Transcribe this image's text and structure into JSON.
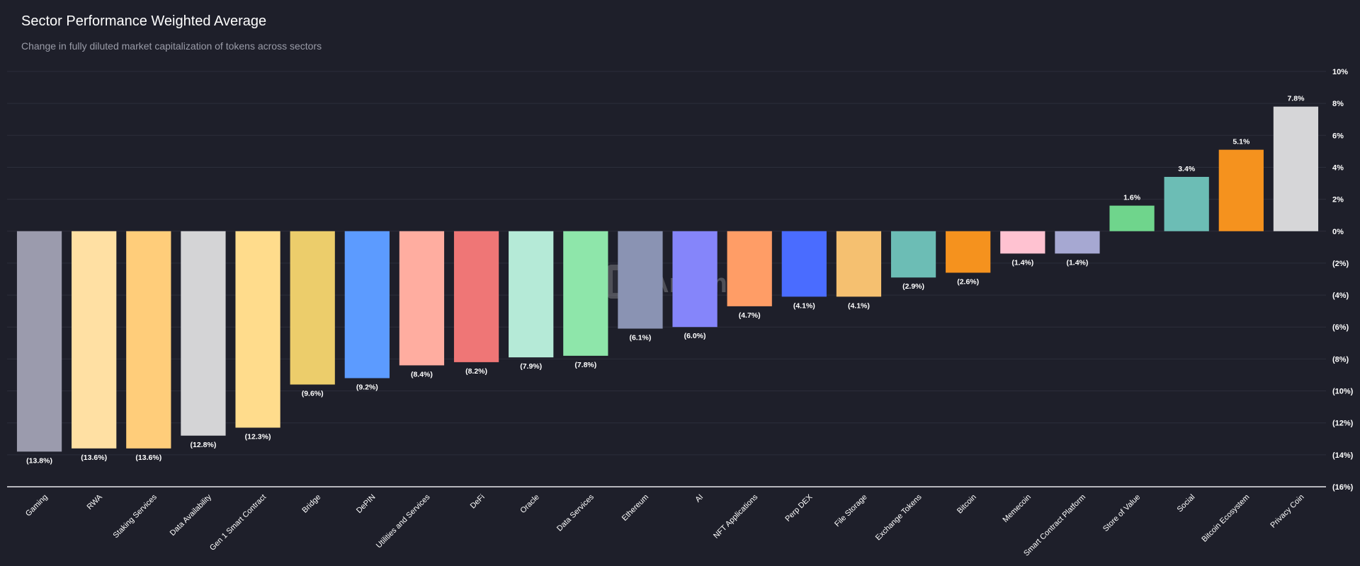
{
  "header": {
    "title": "Sector Performance Weighted Average",
    "subtitle": "Change in fully diluted market capitalization of tokens across sectors"
  },
  "watermark": {
    "text": "Artemis"
  },
  "chart_data": {
    "type": "bar",
    "title": "Sector Performance Weighted Average",
    "subtitle": "Change in fully diluted market capitalization of tokens across sectors",
    "xlabel": "",
    "ylabel": "",
    "ylim": [
      -16,
      10
    ],
    "yaxis_position": "right",
    "grid": true,
    "yticks": [
      10,
      8,
      6,
      4,
      2,
      0,
      -2,
      -4,
      -6,
      -8,
      -10,
      -12,
      -14,
      -16
    ],
    "ytick_labels": [
      "10%",
      "8%",
      "6%",
      "4%",
      "2%",
      "0%",
      "(2%)",
      "(4%)",
      "(6%)",
      "(8%)",
      "(10%)",
      "(12%)",
      "(14%)",
      "(16%)"
    ],
    "categories": [
      "Gaming",
      "RWA",
      "Staking Services",
      "Data Availability",
      "Gen 1 Smart Contract",
      "Bridge",
      "DePIN",
      "Utilities and Services",
      "DeFi",
      "Oracle",
      "Data Services",
      "Ethereum",
      "AI",
      "NFT Applications",
      "Perp DEX",
      "File Storage",
      "Exchange Tokens",
      "Bitcoin",
      "Memecoin",
      "Smart Contract Platform",
      "Store of Value",
      "Social",
      "Bitcoin Ecosystem",
      "Privacy Coin"
    ],
    "values": [
      -13.8,
      -13.6,
      -13.6,
      -12.8,
      -12.3,
      -9.6,
      -9.2,
      -8.4,
      -8.2,
      -7.9,
      -7.8,
      -6.1,
      -6.0,
      -4.7,
      -4.1,
      -4.1,
      -2.9,
      -2.6,
      -1.4,
      -1.4,
      1.6,
      3.4,
      5.1,
      7.8
    ],
    "labels": [
      "(13.8%)",
      "(13.6%)",
      "(13.6%)",
      "(12.8%)",
      "(12.3%)",
      "(9.6%)",
      "(9.2%)",
      "(8.4%)",
      "(8.2%)",
      "(7.9%)",
      "(7.8%)",
      "(6.1%)",
      "(6.0%)",
      "(4.7%)",
      "(4.1%)",
      "(4.1%)",
      "(2.9%)",
      "(2.6%)",
      "(1.4%)",
      "(1.4%)",
      "1.6%",
      "3.4%",
      "5.1%",
      "7.8%"
    ],
    "colors": [
      "#9b9bad",
      "#ffe0a3",
      "#ffcd7a",
      "#d4d4d6",
      "#ffdc8c",
      "#eccd6b",
      "#5c9bff",
      "#ffada0",
      "#ef7676",
      "#b5ead7",
      "#8ee6aa",
      "#8a93b3",
      "#8585fa",
      "#ff9d66",
      "#4a6cff",
      "#f5c070",
      "#6cbdb5",
      "#f5921e",
      "#ffc2d1",
      "#a6a8d2",
      "#6fd58c",
      "#6cbdb5",
      "#f5921e",
      "#d6d6d8"
    ]
  }
}
